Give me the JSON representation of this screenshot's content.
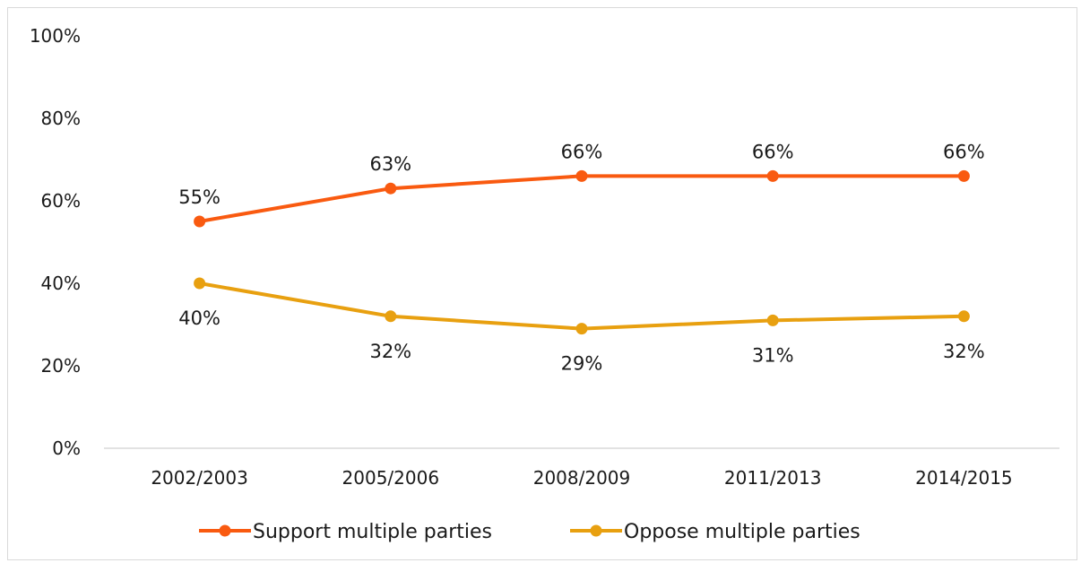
{
  "chart_data": {
    "type": "line",
    "categories": [
      "2002/2003",
      "2005/2006",
      "2008/2009",
      "2011/2013",
      "2014/2015"
    ],
    "series": [
      {
        "name": "Support multiple parties",
        "color": "#F95A10",
        "values": [
          55,
          63,
          66,
          66,
          66
        ],
        "labels": [
          "55%",
          "63%",
          "66%",
          "66%",
          "66%"
        ],
        "label_position": "above"
      },
      {
        "name": "Oppose multiple parties",
        "color": "#E8A010",
        "values": [
          40,
          32,
          29,
          31,
          32
        ],
        "labels": [
          "40%",
          "32%",
          "29%",
          "31%",
          "32%"
        ],
        "label_position": "below"
      }
    ],
    "ylim": [
      0,
      100
    ],
    "yticks": [
      0,
      20,
      40,
      60,
      80,
      100
    ],
    "ytick_labels": [
      "0%",
      "20%",
      "40%",
      "60%",
      "80%",
      "100%"
    ],
    "grid": false,
    "legend_position": "bottom",
    "axis_color": "#d9d9d9"
  }
}
